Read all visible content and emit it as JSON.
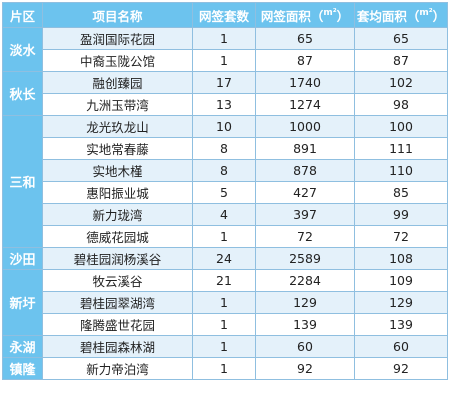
{
  "table": {
    "headers": [
      "片区",
      "项目名称",
      "网签套数",
      "网签面积（",
      "套均面积（"
    ],
    "header_suffix": "）",
    "unit_icon": "m²-icon",
    "accent_color": "#6cc3ee",
    "stripe_color": "#e4f1fa",
    "groups": [
      {
        "district": "淡水",
        "rows": [
          {
            "name": "盈润国际花园",
            "units": "1",
            "area": "65",
            "avg": "65"
          },
          {
            "name": "中裔玉陇公馆",
            "units": "1",
            "area": "87",
            "avg": "87"
          }
        ]
      },
      {
        "district": "秋长",
        "rows": [
          {
            "name": "融创臻园",
            "units": "17",
            "area": "1740",
            "avg": "102"
          },
          {
            "name": "九洲玉带湾",
            "units": "13",
            "area": "1274",
            "avg": "98"
          }
        ]
      },
      {
        "district": "三和",
        "rows": [
          {
            "name": "龙光玖龙山",
            "units": "10",
            "area": "1000",
            "avg": "100"
          },
          {
            "name": "实地常春藤",
            "units": "8",
            "area": "891",
            "avg": "111"
          },
          {
            "name": "实地木槿",
            "units": "8",
            "area": "878",
            "avg": "110"
          },
          {
            "name": "惠阳振业城",
            "units": "5",
            "area": "427",
            "avg": "85"
          },
          {
            "name": "新力珑湾",
            "units": "4",
            "area": "397",
            "avg": "99"
          },
          {
            "name": "德威花园城",
            "units": "1",
            "area": "72",
            "avg": "72"
          }
        ]
      },
      {
        "district": "沙田",
        "rows": [
          {
            "name": "碧桂园润杨溪谷",
            "units": "24",
            "area": "2589",
            "avg": "108"
          }
        ]
      },
      {
        "district": "新圩",
        "rows": [
          {
            "name": "牧云溪谷",
            "units": "21",
            "area": "2284",
            "avg": "109"
          },
          {
            "name": "碧桂园翠湖湾",
            "units": "1",
            "area": "129",
            "avg": "129"
          },
          {
            "name": "隆腾盛世花园",
            "units": "1",
            "area": "139",
            "avg": "139"
          }
        ]
      },
      {
        "district": "永湖",
        "rows": [
          {
            "name": "碧桂园森林湖",
            "units": "1",
            "area": "60",
            "avg": "60"
          }
        ]
      },
      {
        "district": "镇隆",
        "rows": [
          {
            "name": "新力帝泊湾",
            "units": "1",
            "area": "92",
            "avg": "92"
          }
        ]
      }
    ]
  }
}
